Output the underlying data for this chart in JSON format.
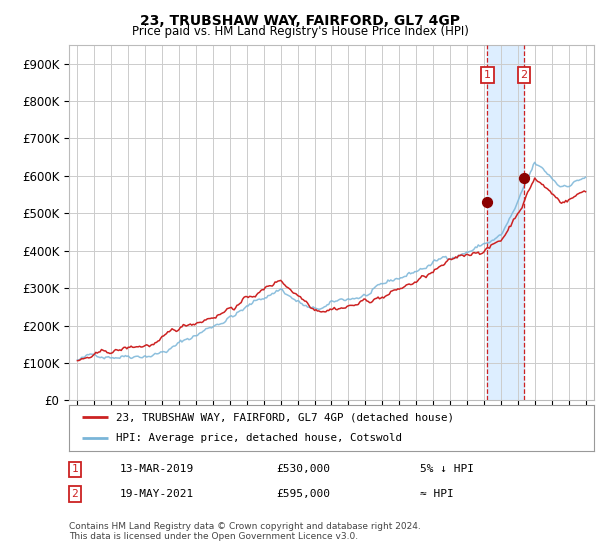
{
  "title": "23, TRUBSHAW WAY, FAIRFORD, GL7 4GP",
  "subtitle": "Price paid vs. HM Land Registry's House Price Index (HPI)",
  "legend_line1": "23, TRUBSHAW WAY, FAIRFORD, GL7 4GP (detached house)",
  "legend_line2": "HPI: Average price, detached house, Cotswold",
  "annotation1_date": "13-MAR-2019",
  "annotation1_price": "£530,000",
  "annotation1_note": "5% ↓ HPI",
  "annotation2_date": "19-MAY-2021",
  "annotation2_price": "£595,000",
  "annotation2_note": "≈ HPI",
  "footer1": "Contains HM Land Registry data © Crown copyright and database right 2024.",
  "footer2": "This data is licensed under the Open Government Licence v3.0.",
  "hpi_color": "#7ab5d8",
  "price_color": "#cc2222",
  "marker_color": "#8b0000",
  "dashed_line_color": "#cc2222",
  "shaded_region_color": "#ddeeff",
  "annotation_box_color": "#cc2222",
  "grid_color": "#cccccc",
  "bg_color": "#ffffff",
  "yticks": [
    0,
    100000,
    200000,
    300000,
    400000,
    500000,
    600000,
    700000,
    800000,
    900000
  ],
  "ytick_labels": [
    "£0",
    "£100K",
    "£200K",
    "£300K",
    "£400K",
    "£500K",
    "£600K",
    "£700K",
    "£800K",
    "£900K"
  ],
  "sale1_year": 2019.2,
  "sale1_price": 530000,
  "sale2_year": 2021.37,
  "sale2_price": 595000
}
